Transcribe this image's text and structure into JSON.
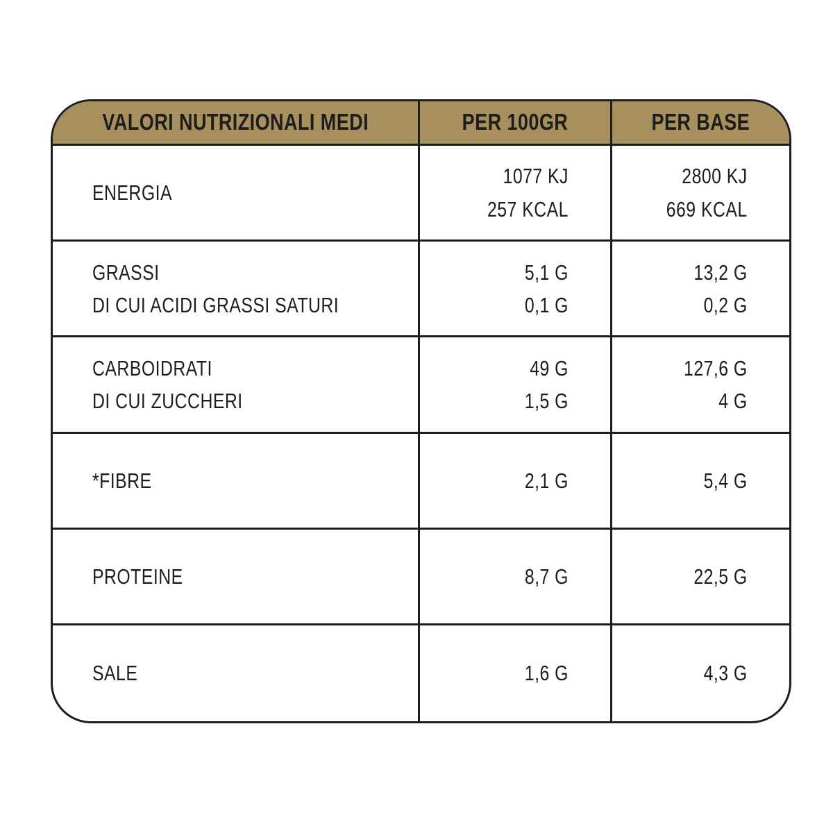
{
  "columns": {
    "nutrients": "VALORI NUTRIZIONALI MEDI",
    "per_100gr": "PER 100GR",
    "per_base": "PER BASE"
  },
  "rows": [
    {
      "nutrient": [
        "ENERGIA"
      ],
      "per_100gr": [
        "1077 KJ",
        "257 KCAL"
      ],
      "per_base": [
        "2800 KJ",
        "669 KCAL"
      ]
    },
    {
      "nutrient": [
        "GRASSI",
        "DI CUI ACIDI GRASSI SATURI"
      ],
      "per_100gr": [
        "5,1 G",
        "0,1 G"
      ],
      "per_base": [
        "13,2 G",
        "0,2 G"
      ]
    },
    {
      "nutrient": [
        "CARBOIDRATI",
        "DI CUI ZUCCHERI"
      ],
      "per_100gr": [
        "49 G",
        "1,5 G"
      ],
      "per_base": [
        "127,6 G",
        "4 G"
      ]
    },
    {
      "nutrient": [
        "*FIBRE"
      ],
      "per_100gr": [
        "2,1 G"
      ],
      "per_base": [
        "5,4 G"
      ]
    },
    {
      "nutrient": [
        "PROTEINE"
      ],
      "per_100gr": [
        "8,7 G"
      ],
      "per_base": [
        "22,5 G"
      ]
    },
    {
      "nutrient": [
        "SALE"
      ],
      "per_100gr": [
        "1,6 G"
      ],
      "per_base": [
        "4,3 G"
      ]
    }
  ],
  "colors": {
    "header_background": "#a8905e",
    "header_text": "#f7f2e9",
    "body_text": "#1d1d1b",
    "border": "#1d1d1b",
    "background": "#ffffff"
  }
}
